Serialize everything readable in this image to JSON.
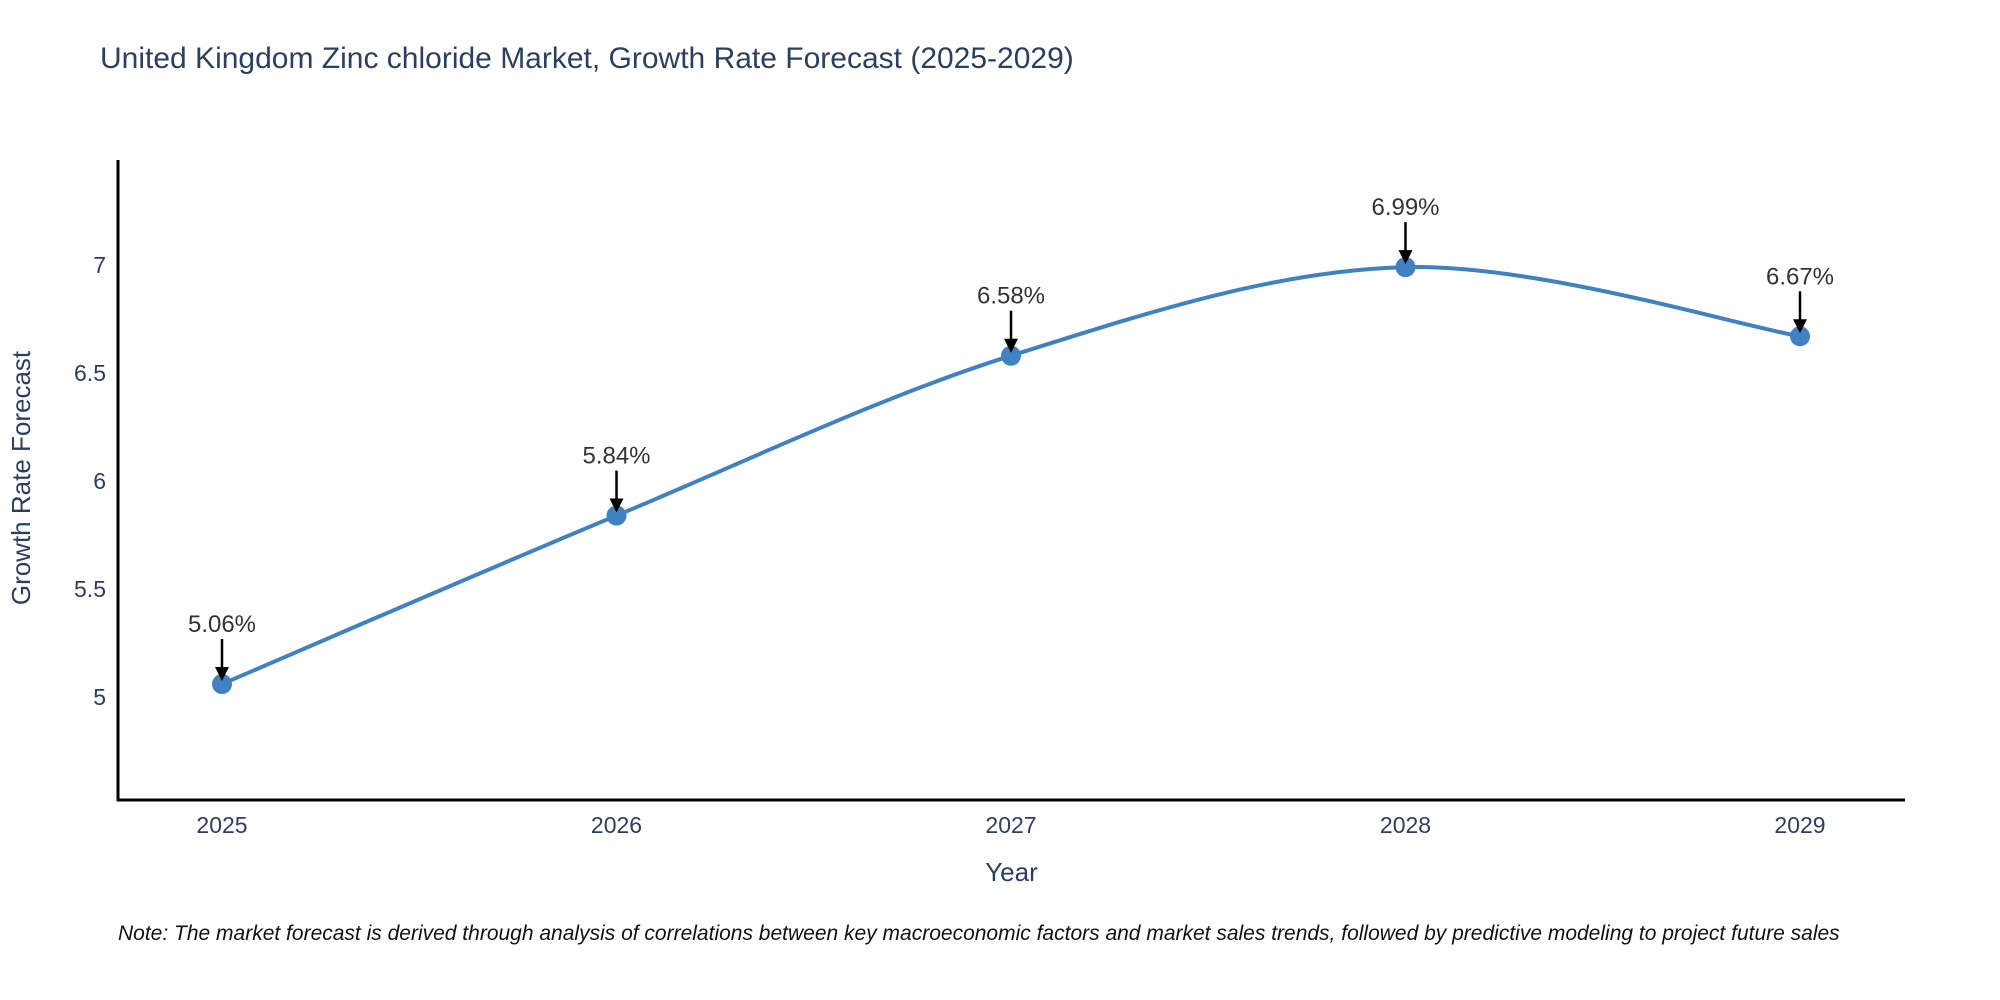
{
  "title": "United Kingdom Zinc chloride Market, Growth Rate Forecast (2025-2029)",
  "note": "Note: The market forecast is derived through analysis of correlations between key macroeconomic factors and market sales trends, followed by predictive modeling to project future sales",
  "chart_data": {
    "type": "line",
    "title": "United Kingdom Zinc chloride Market, Growth Rate Forecast (2025-2029)",
    "xlabel": "Year",
    "ylabel": "Growth Rate Forecast",
    "x": [
      2025,
      2026,
      2027,
      2028,
      2029
    ],
    "values": [
      5.06,
      5.84,
      6.58,
      6.99,
      6.67
    ],
    "point_labels": [
      "5.06%",
      "5.84%",
      "6.58%",
      "6.99%",
      "6.67%"
    ],
    "x_tick_labels": [
      "2025",
      "2026",
      "2027",
      "2028",
      "2029"
    ],
    "y_ticks": [
      5,
      5.5,
      6,
      6.5,
      7
    ],
    "y_tick_labels": [
      "5",
      "5.5",
      "6",
      "6.5",
      "7"
    ],
    "ylim": [
      4.52,
      7.49
    ],
    "line_shape": "spline",
    "grid": "off",
    "legend": "none",
    "colors": {
      "line": "#3f81c1",
      "marker": "#3f81c1",
      "axis_line": "#000000",
      "axis_text": "#2a3f5f",
      "annotation_text": "#333333",
      "annotation_arrow": "#000000",
      "background": "#ffffff"
    }
  }
}
